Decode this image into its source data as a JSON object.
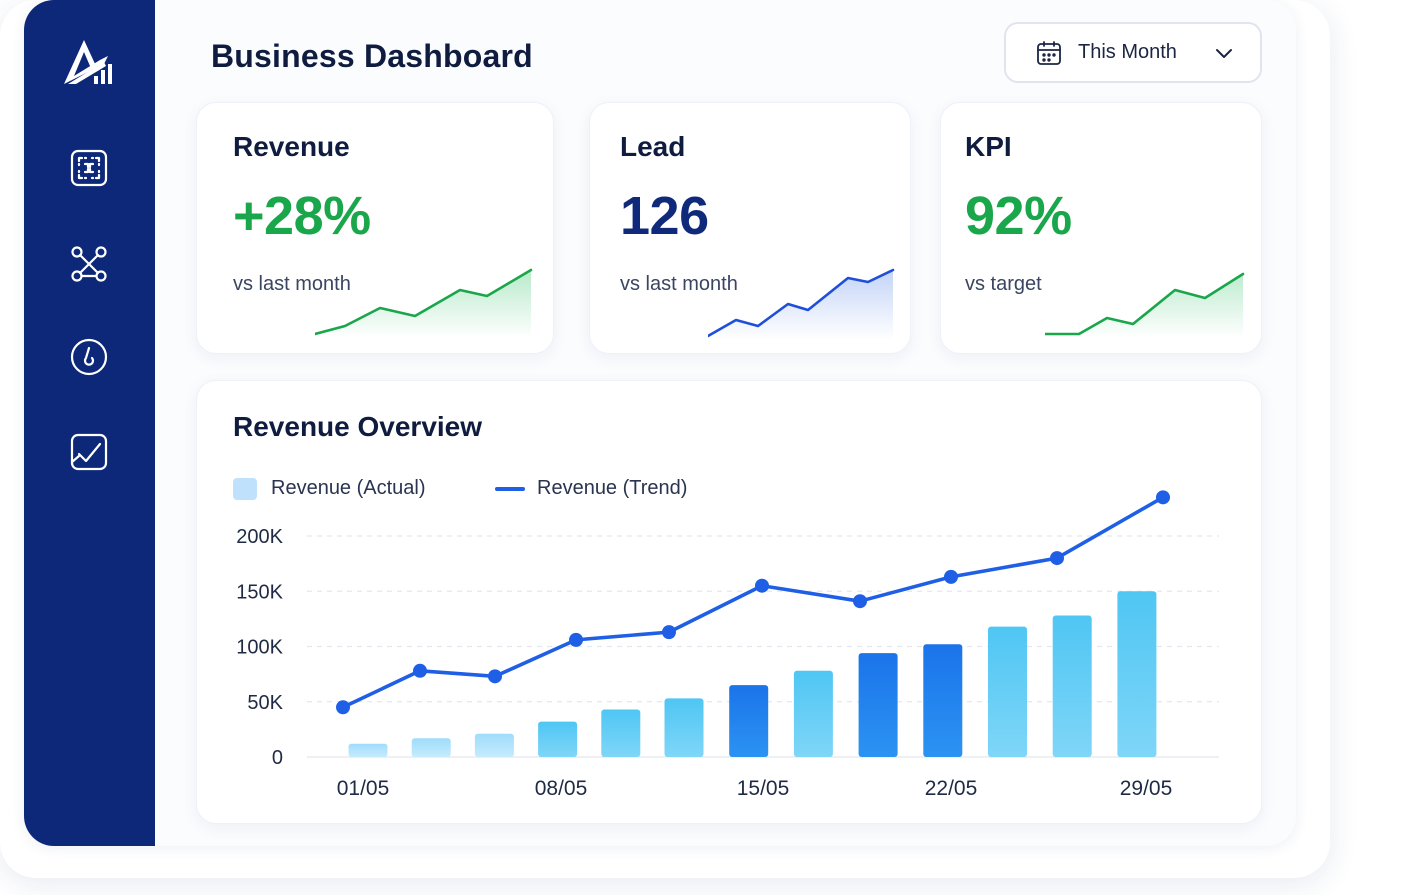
{
  "header": {
    "title": "Business Dashboard"
  },
  "period_select": {
    "label": "This Month",
    "icon": "calendar-icon"
  },
  "sidebar": {
    "logo": "logo",
    "items": [
      {
        "icon": "dashboard-grid-icon"
      },
      {
        "icon": "network-icon"
      },
      {
        "icon": "timer-icon"
      },
      {
        "icon": "check-chart-icon"
      }
    ]
  },
  "kpis": [
    {
      "title": "Revenue",
      "value": "+28%",
      "sub": "vs last month",
      "color": "#1aa64b"
    },
    {
      "title": "Lead",
      "value": "126",
      "sub": "vs last month",
      "color": "#0f2a7a"
    },
    {
      "title": "KPI",
      "value": "92%",
      "sub": "vs target",
      "color": "#1aa64b"
    }
  ],
  "overview": {
    "title": "Revenue Overview",
    "legend_actual": "Revenue (Actual)",
    "legend_trend": "Revenue (Trend)"
  },
  "chart_data": {
    "type": "bar",
    "y_ticks": [
      "200K",
      "150K",
      "100K",
      "50K",
      "0"
    ],
    "x_labels": [
      "01/05",
      "08/05",
      "15/05",
      "22/05",
      "29/05"
    ],
    "ylim": [
      0,
      200000
    ],
    "grid": true,
    "legend": "top-left",
    "series": [
      {
        "name": "Revenue (Actual)",
        "kind": "bar",
        "values": [
          12000,
          17000,
          21000,
          32000,
          43000,
          53000,
          65000,
          78000,
          94000,
          102000,
          118000,
          128000,
          150000
        ]
      },
      {
        "name": "Revenue (Trend)",
        "kind": "line",
        "values": [
          45000,
          78000,
          73000,
          106000,
          113000,
          155000,
          141000,
          163000,
          180000,
          235000
        ]
      }
    ]
  }
}
